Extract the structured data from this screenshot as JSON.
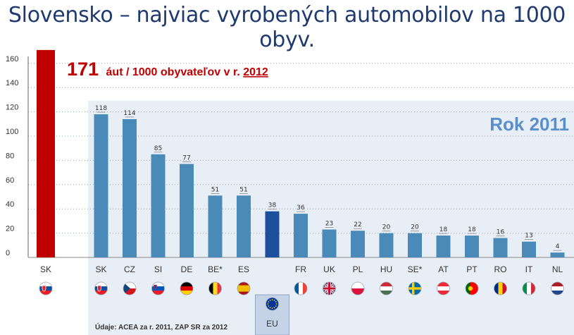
{
  "title": "Slovensko – najviac vyrobených automobilov na 1000 obyv.",
  "headline": {
    "value": "171",
    "text_before_year": "áut / 1000 obyvateľov v r. ",
    "year": "2012"
  },
  "panel_label": "Rok 2011",
  "source": "Údaje: ACEA za r. 2011, ZAP SR za 2012",
  "colors": {
    "title": "#1f3a6e",
    "sk_2012_bar": "#c00000",
    "country_bar": "#4a8ab8",
    "eu_bar": "#1c4f9c",
    "panel_bg": "#e8eef6",
    "panel_label": "#5b8fcc",
    "headline": "#c00000"
  },
  "chart_data": {
    "type": "bar",
    "ylim": [
      0,
      170
    ],
    "yticks": [
      0,
      20,
      40,
      60,
      80,
      100,
      120,
      140,
      160
    ],
    "grid": true,
    "highlight": {
      "category": "SK",
      "value": 171,
      "flag": "flag-sk"
    },
    "categories": [
      "SK",
      "CZ",
      "SI",
      "DE",
      "BE*",
      "ES",
      "EU",
      "FR",
      "UK",
      "PL",
      "HU",
      "SE*",
      "AT",
      "PT",
      "RO",
      "IT",
      "NL"
    ],
    "values": [
      118,
      114,
      85,
      77,
      51,
      51,
      38,
      36,
      23,
      22,
      20,
      20,
      18,
      18,
      16,
      13,
      4
    ],
    "flags": [
      "flag-sk",
      "flag-cz",
      "flag-si",
      "flag-de",
      "flag-be",
      "flag-es",
      "flag-eu",
      "flag-fr",
      "flag-uk",
      "flag-pl",
      "flag-hu",
      "flag-se",
      "flag-at",
      "flag-pt",
      "flag-ro",
      "flag-it",
      "flag-nl"
    ]
  }
}
